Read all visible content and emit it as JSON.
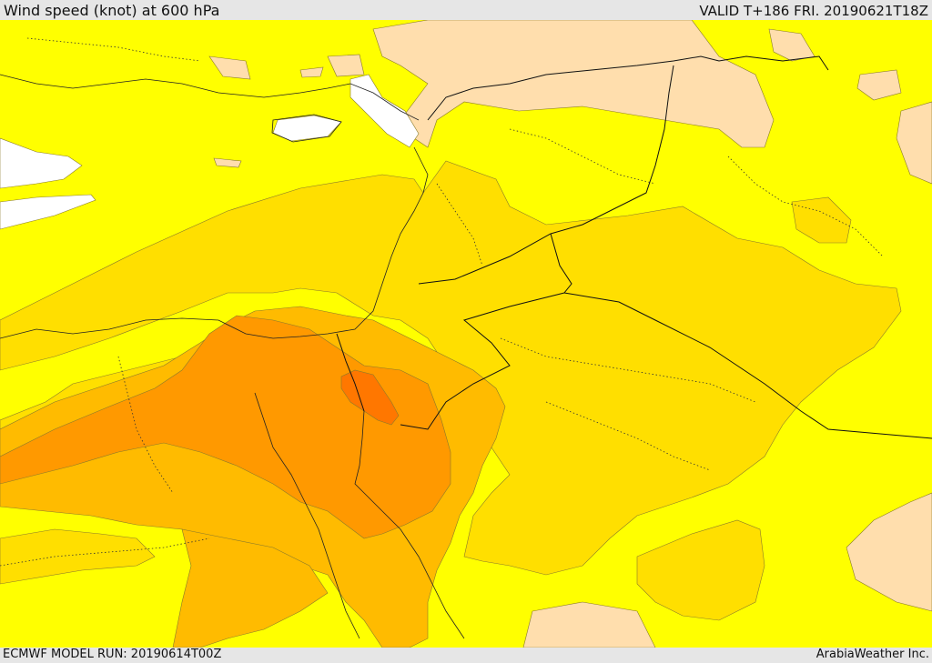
{
  "header": {
    "title": "Wind speed (knot) at 600 hPa",
    "valid": "VALID T+186 FRI. 20190621T18Z"
  },
  "footer": {
    "model_run": "ECMWF MODEL RUN: 20190614T00Z",
    "credit": "ArabiaWeather Inc."
  },
  "colors": {
    "band_lt10": "#ffffff",
    "band_10_20": "#ffff00",
    "band_20_25": "#ffdf00",
    "band_25_30": "#ffbb00",
    "band_30_35": "#ff9900",
    "band_35_40": "#ff7700",
    "band_calm": "#ffdead"
  }
}
